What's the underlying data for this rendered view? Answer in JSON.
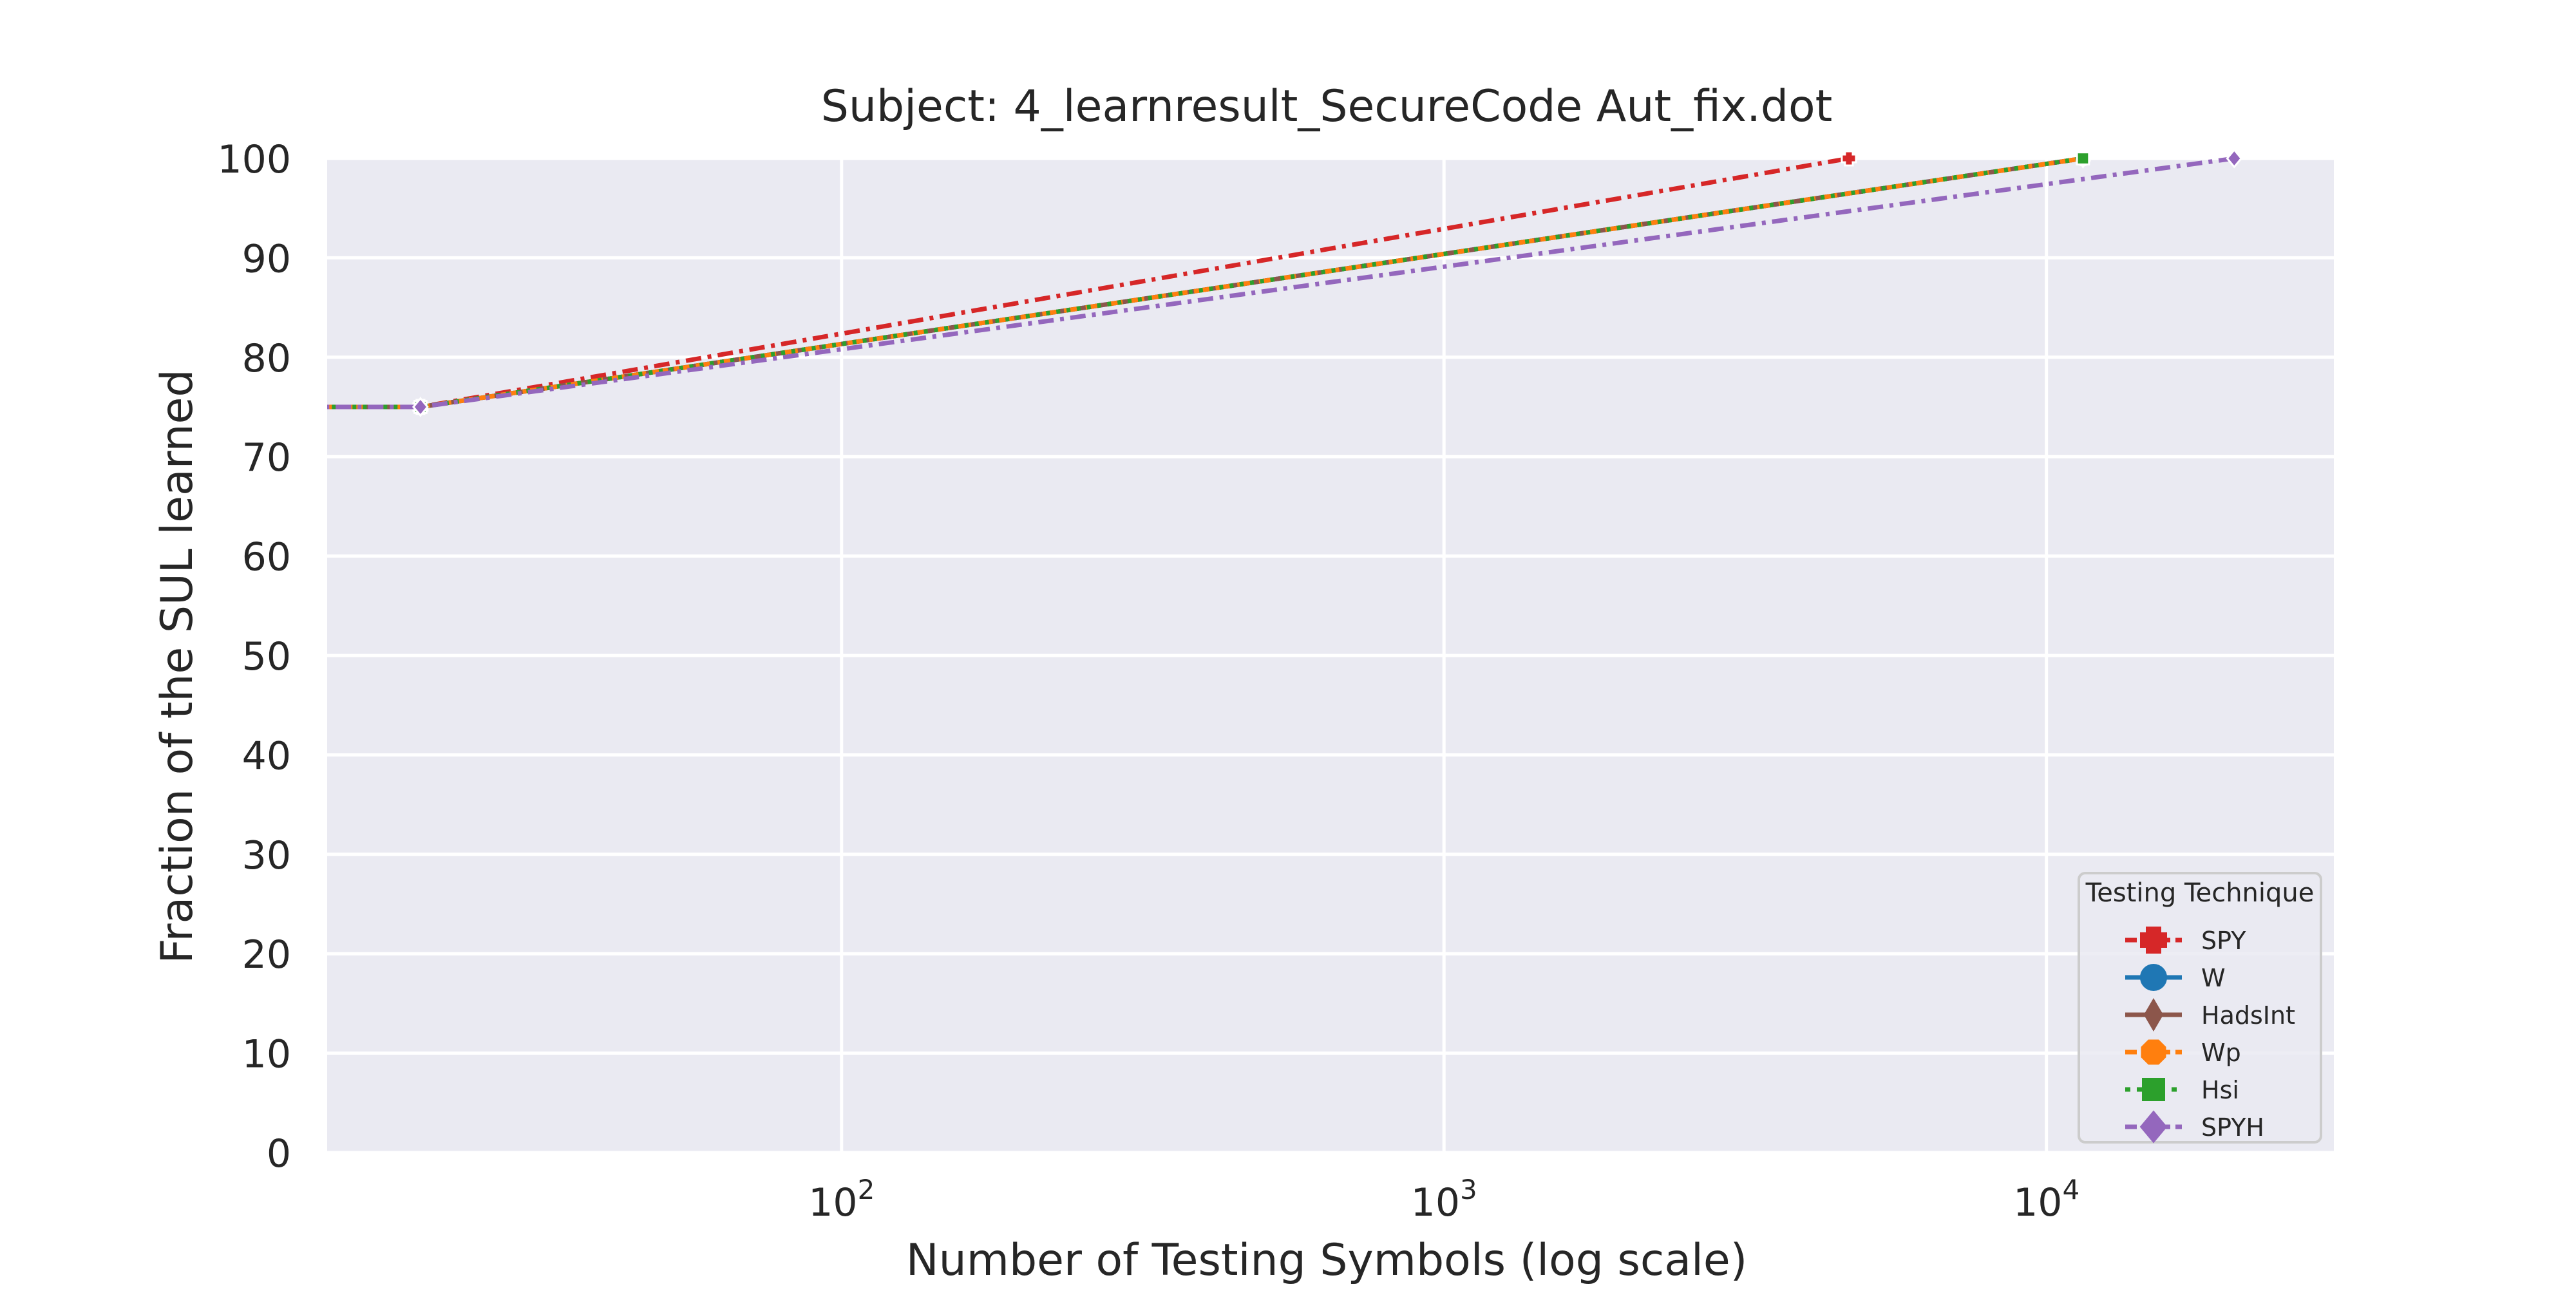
{
  "chart_data": {
    "type": "line",
    "title": "Subject: 4_learnresult_SecureCode Aut_fix.dot",
    "xlabel": "Number of Testing Symbols (log scale)",
    "ylabel": "Fraction of the SUL learned",
    "x_scale": "log",
    "xlim": [
      14,
      30000
    ],
    "ylim": [
      0,
      100
    ],
    "x_ticks": [
      {
        "value": 100,
        "base": "10",
        "exp": "2"
      },
      {
        "value": 1000,
        "base": "10",
        "exp": "3"
      },
      {
        "value": 10000,
        "base": "10",
        "exp": "4"
      }
    ],
    "y_ticks": [
      "0",
      "10",
      "20",
      "30",
      "40",
      "50",
      "60",
      "70",
      "80",
      "90",
      "100"
    ],
    "grid": true,
    "background": "#eaeaf2",
    "legend": {
      "title": "Testing Technique",
      "placement": "bottom-right"
    },
    "series": [
      {
        "name": "SPY",
        "color": "#d62728",
        "marker": "plus",
        "dash": "dashdot",
        "x": [
          10,
          20,
          4700
        ],
        "y": [
          75,
          75,
          100
        ]
      },
      {
        "name": "W",
        "color": "#1f77b4",
        "marker": "circle",
        "dash": "solid",
        "x": [
          10,
          20,
          11500
        ],
        "y": [
          75,
          75,
          100
        ]
      },
      {
        "name": "HadsInt",
        "color": "#8c564b",
        "marker": "thin-diamond",
        "dash": "solid",
        "x": [
          10,
          20,
          11500
        ],
        "y": [
          75,
          75,
          100
        ]
      },
      {
        "name": "Wp",
        "color": "#ff7f0e",
        "marker": "pushpin",
        "dash": "dashed",
        "x": [
          10,
          20,
          11500
        ],
        "y": [
          75,
          75,
          100
        ]
      },
      {
        "name": "Hsi",
        "color": "#2ca02c",
        "marker": "square",
        "dash": "dotted",
        "x": [
          10,
          20,
          11500
        ],
        "y": [
          75,
          75,
          100
        ]
      },
      {
        "name": "SPYH",
        "color": "#9467bd",
        "marker": "diamond",
        "dash": "dashdot",
        "x": [
          10,
          20,
          20500
        ],
        "y": [
          75,
          75,
          100
        ]
      }
    ]
  }
}
